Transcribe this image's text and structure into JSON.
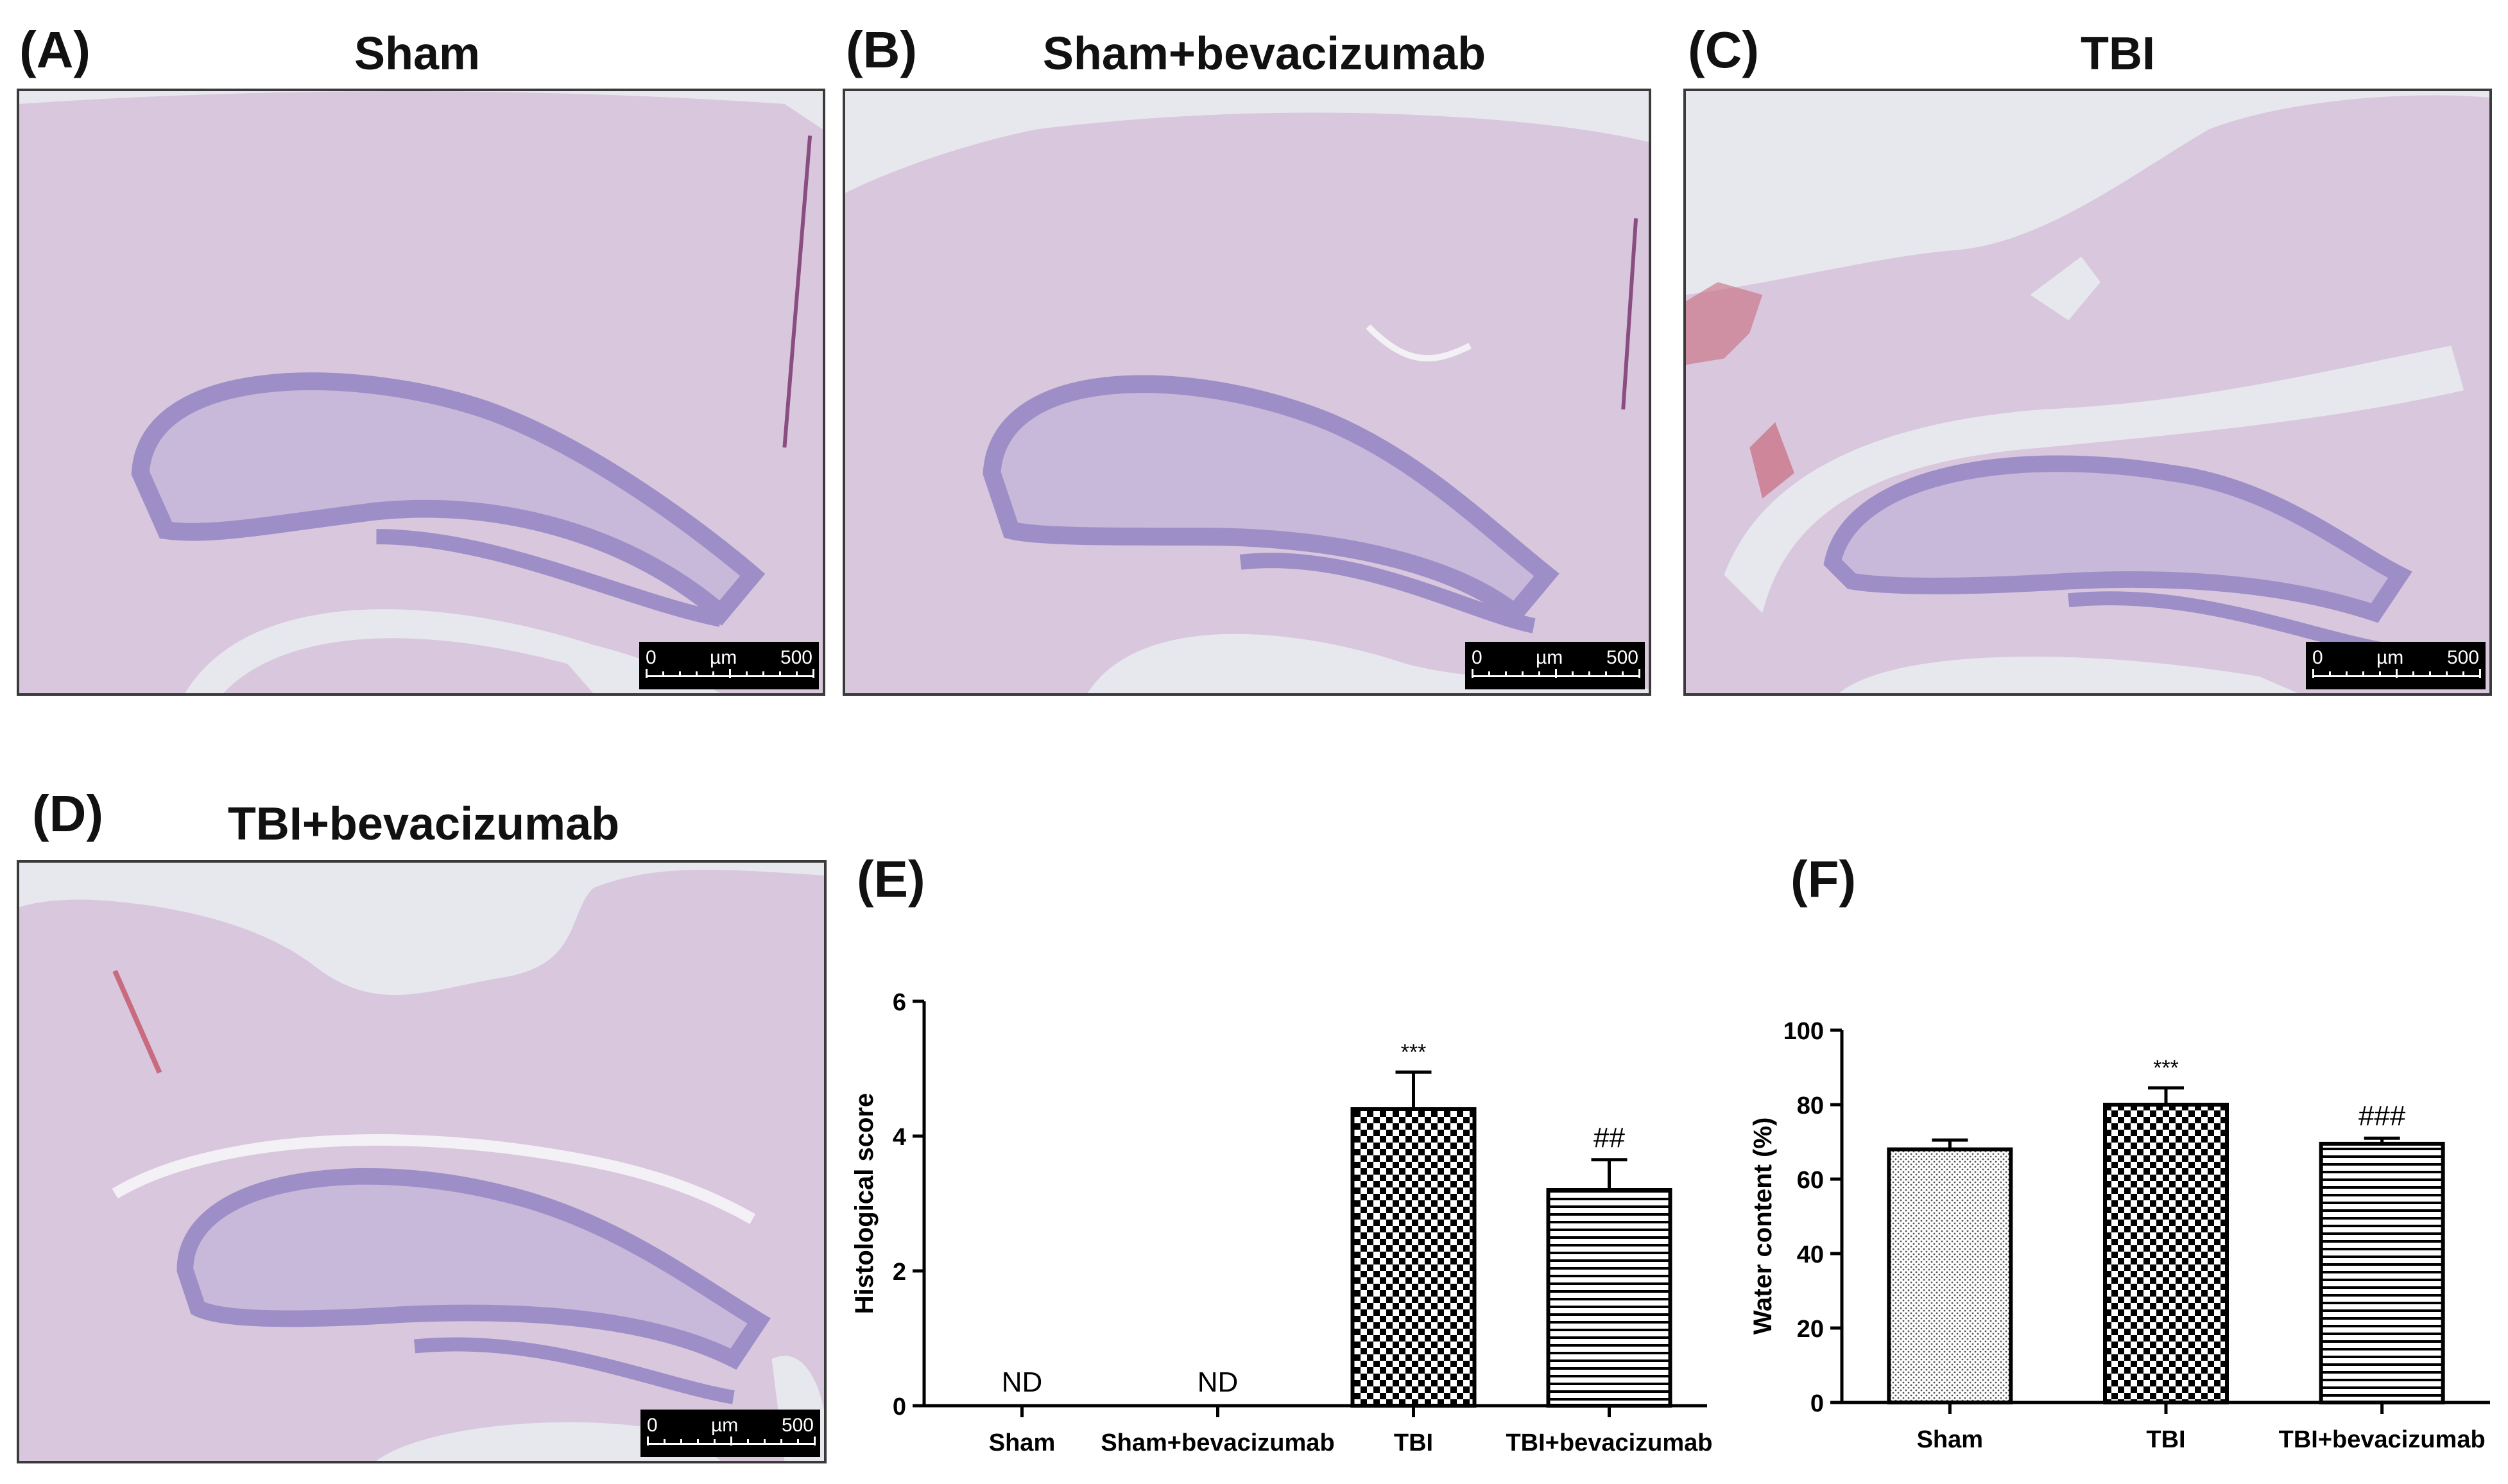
{
  "panels": [
    {
      "label": "(A)",
      "title": "Sham",
      "scale": {
        "start": "0",
        "unit": "µm",
        "end": "500"
      }
    },
    {
      "label": "(B)",
      "title": "Sham+bevacizumab",
      "scale": {
        "start": "0",
        "unit": "µm",
        "end": "500"
      }
    },
    {
      "label": "(C)",
      "title": "TBI",
      "scale": {
        "start": "0",
        "unit": "µm",
        "end": "500"
      }
    },
    {
      "label": "(D)",
      "title": "TBI+bevacizumab",
      "scale": {
        "start": "0",
        "unit": "µm",
        "end": "500"
      }
    }
  ],
  "colors": {
    "tissue": "#d6c3da",
    "hippocampus": "#9d8ec7",
    "background": "#e7e8ee",
    "blood": "#c96b7e"
  },
  "chart_data": [
    {
      "label": "(E)",
      "type": "bar",
      "categories": [
        "Sham",
        "Sham+bevacizumab",
        "TBI",
        "TBI+bevacizumab"
      ],
      "values": [
        null,
        null,
        4.4,
        3.2
      ],
      "errors": [
        null,
        null,
        0.55,
        0.45
      ],
      "annotations": [
        "ND",
        "ND",
        "***",
        "##"
      ],
      "patterns": [
        "none",
        "none",
        "checker",
        "hlines"
      ],
      "ylabel": "Histological score",
      "ylim": [
        0,
        6
      ],
      "yticks": [
        0,
        2,
        4,
        6
      ]
    },
    {
      "label": "(F)",
      "type": "bar",
      "categories": [
        "Sham",
        "TBI",
        "TBI+bevacizumab"
      ],
      "values": [
        68,
        80,
        69.5
      ],
      "errors": [
        2.5,
        4.5,
        1.5
      ],
      "annotations": [
        "",
        "***",
        "###"
      ],
      "patterns": [
        "dots",
        "checker",
        "hlines"
      ],
      "ylabel": "Water content (%)",
      "ylim": [
        0,
        100
      ],
      "yticks": [
        0,
        20,
        40,
        60,
        80,
        100
      ]
    }
  ]
}
